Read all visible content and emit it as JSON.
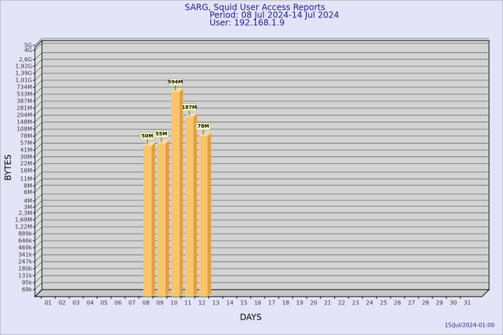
{
  "chart_data": {
    "type": "bar",
    "title": "SARG, Squid User Access Reports",
    "subtitle": [
      "Period: 08 Jul 2024-14 Jul 2024",
      "User: 192.168.1.9"
    ],
    "x_label": "DAYS",
    "y_label": "BYTES",
    "footer": "15/Jul/2024-01:00",
    "categories": [
      "01",
      "02",
      "03",
      "04",
      "05",
      "06",
      "07",
      "08",
      "09",
      "10",
      "11",
      "12",
      "13",
      "14",
      "15",
      "16",
      "17",
      "18",
      "19",
      "20",
      "21",
      "22",
      "23",
      "24",
      "25",
      "26",
      "27",
      "28",
      "29",
      "30",
      "31"
    ],
    "values": [
      null,
      null,
      null,
      null,
      null,
      null,
      null,
      50000000,
      55000000,
      594000000,
      187000000,
      78000000,
      null,
      null,
      null,
      null,
      null,
      null,
      null,
      null,
      null,
      null,
      null,
      null,
      null,
      null,
      null,
      null,
      null,
      null,
      null
    ],
    "value_labels": [
      null,
      null,
      null,
      null,
      null,
      null,
      null,
      "50M",
      "55M",
      "594M",
      "187M",
      "78M",
      null,
      null,
      null,
      null,
      null,
      null,
      null,
      null,
      null,
      null,
      null,
      null,
      null,
      null,
      null,
      null,
      null,
      null,
      null
    ],
    "color": "#f8c46c",
    "log_scale": true,
    "grid": true,
    "ylim": [
      50000,
      5000000000
    ],
    "yticks": [
      {
        "value": 69000,
        "label": "69k"
      },
      {
        "value": 95000,
        "label": "95k"
      },
      {
        "value": 131000,
        "label": "131k"
      },
      {
        "value": 180000,
        "label": "180k"
      },
      {
        "value": 247000,
        "label": "247k"
      },
      {
        "value": 341000,
        "label": "341k"
      },
      {
        "value": 469000,
        "label": "469k"
      },
      {
        "value": 646000,
        "label": "646k"
      },
      {
        "value": 889000,
        "label": "889k"
      },
      {
        "value": 1220000,
        "label": "1,22M"
      },
      {
        "value": 1690000,
        "label": "1,69M"
      },
      {
        "value": 2300000,
        "label": "2,3M"
      },
      {
        "value": 3000000,
        "label": "3M"
      },
      {
        "value": 4000000,
        "label": "4M"
      },
      {
        "value": 6000000,
        "label": "6M"
      },
      {
        "value": 8000000,
        "label": "8M"
      },
      {
        "value": 11000000,
        "label": "11M"
      },
      {
        "value": 16000000,
        "label": "16M"
      },
      {
        "value": 22000000,
        "label": "22M"
      },
      {
        "value": 30000000,
        "label": "30M"
      },
      {
        "value": 41000000,
        "label": "41M"
      },
      {
        "value": 57000000,
        "label": "57M"
      },
      {
        "value": 78000000,
        "label": "78M"
      },
      {
        "value": 108000000,
        "label": "108M"
      },
      {
        "value": 148000000,
        "label": "148M"
      },
      {
        "value": 204000000,
        "label": "204M"
      },
      {
        "value": 281000000,
        "label": "281M"
      },
      {
        "value": 387000000,
        "label": "387M"
      },
      {
        "value": 533000000,
        "label": "533M"
      },
      {
        "value": 734000000,
        "label": "734M"
      },
      {
        "value": 1010000000,
        "label": "1,01G"
      },
      {
        "value": 1390000000,
        "label": "1,39G"
      },
      {
        "value": 1920000000,
        "label": "1,92G"
      },
      {
        "value": 2600000000,
        "label": "2,6G"
      },
      {
        "value": 4000000000,
        "label": "4G"
      },
      {
        "value": 5000000000,
        "label": "5G"
      }
    ]
  }
}
